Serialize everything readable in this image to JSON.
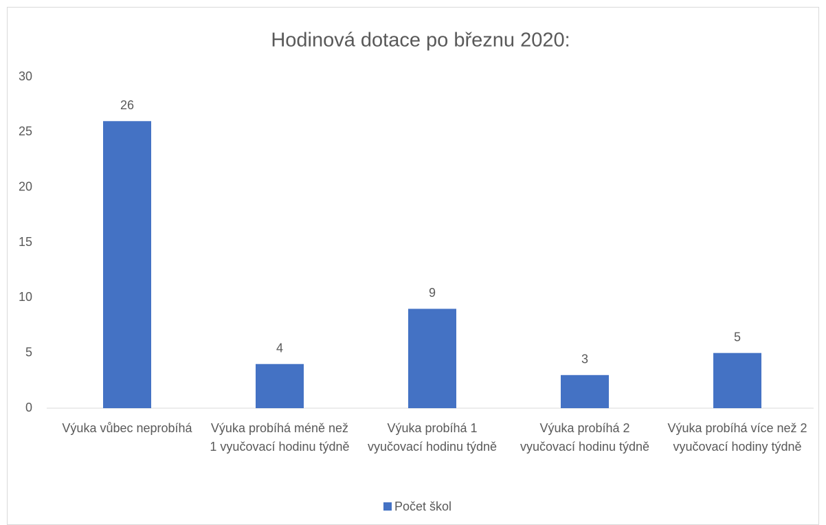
{
  "chart_data": {
    "type": "bar",
    "title": "Hodinová dotace po březnu 2020:",
    "categories": [
      "Výuka vůbec neprobíhá",
      "Výuka probíhá méně než 1 vyučovací hodinu týdně",
      "Výuka probíhá 1 vyučovací hodinu týdně",
      "Výuka probíhá 2 vyučovací hodinu týdně",
      "Výuka probíhá více než 2 vyučovací hodiny týdně"
    ],
    "series": [
      {
        "name": "Počet škol",
        "color": "#4472c4",
        "values": [
          26,
          4,
          9,
          3,
          5
        ]
      }
    ],
    "ylim": [
      0,
      30
    ],
    "yticks": [
      0,
      5,
      10,
      15,
      20,
      25,
      30
    ],
    "grid": false,
    "legend": "bottom"
  }
}
